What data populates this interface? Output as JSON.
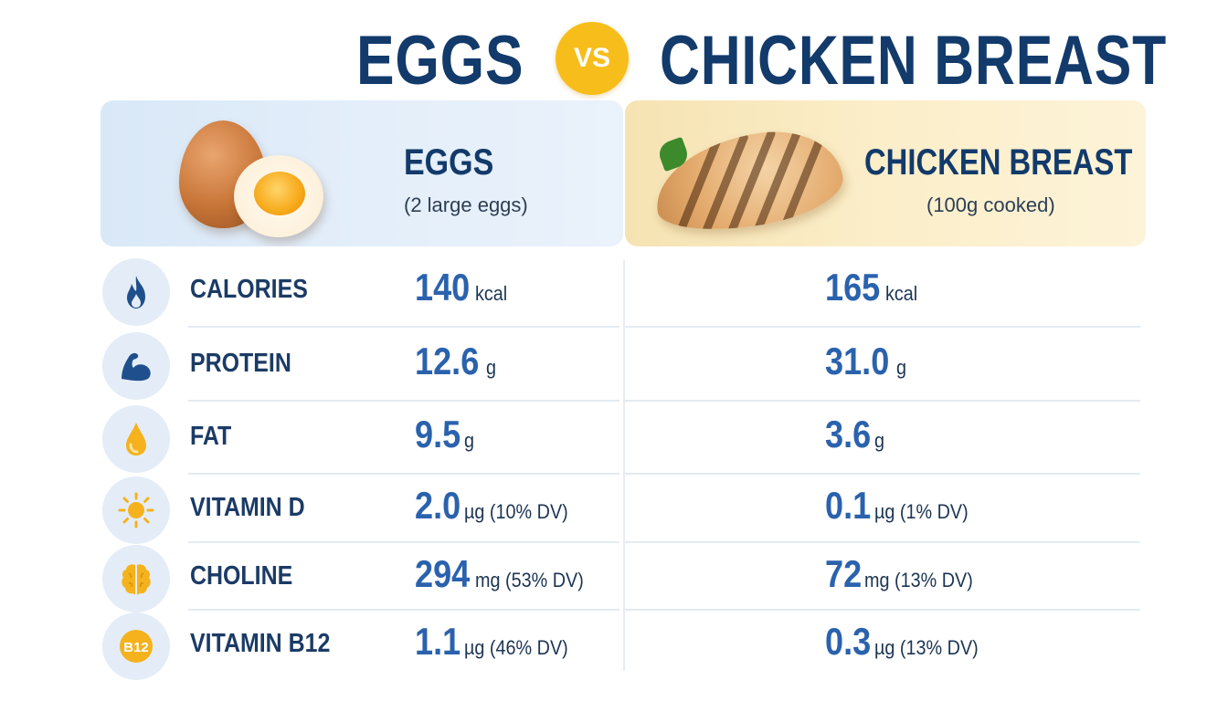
{
  "title": {
    "left": "EGGS",
    "vs": "VS",
    "right": "CHICKEN BREAST"
  },
  "panels": {
    "eggs": {
      "name": "EGGS",
      "serving": "(2 large eggs)"
    },
    "chicken": {
      "name": "CHICKEN BREAST",
      "serving": "(100g cooked)"
    }
  },
  "rows": [
    {
      "icon": "flame-icon",
      "label": "CALORIES",
      "eggs": {
        "value": "140",
        "unit": "kcal"
      },
      "chicken": {
        "value": "165",
        "unit": "kcal"
      }
    },
    {
      "icon": "flexed-arm-icon",
      "label": "PROTEIN",
      "eggs": {
        "value": "12.6",
        "unit": "g"
      },
      "chicken": {
        "value": "31.0",
        "unit": "g"
      }
    },
    {
      "icon": "droplet-icon",
      "label": "FAT",
      "eggs": {
        "value": "9.5",
        "unit": "g"
      },
      "chicken": {
        "value": "3.6",
        "unit": "g"
      }
    },
    {
      "icon": "sun-icon",
      "label": "VITAMIN D",
      "eggs": {
        "value": "2.0",
        "unit": "µg (10% DV)"
      },
      "chicken": {
        "value": "0.1",
        "unit": "µg (1% DV)"
      }
    },
    {
      "icon": "brain-icon",
      "label": "CHOLINE",
      "eggs": {
        "value": "294",
        "unit": "mg (53% DV)"
      },
      "chicken": {
        "value": "72",
        "unit": "mg (13% DV)"
      }
    },
    {
      "icon": "b12-badge-icon",
      "icon_text": "B12",
      "label": "VITAMIN B12",
      "eggs": {
        "value": "1.1",
        "unit": "µg (46% DV)"
      },
      "chicken": {
        "value": "0.3",
        "unit": "µg (13% DV)"
      }
    }
  ],
  "colors": {
    "navy": "#123a6b",
    "accent_blue": "#2a62ad",
    "vs_yellow": "#f7bd1a",
    "icon_blue": "#1f4f8c",
    "icon_gold": "#f5b21c"
  }
}
